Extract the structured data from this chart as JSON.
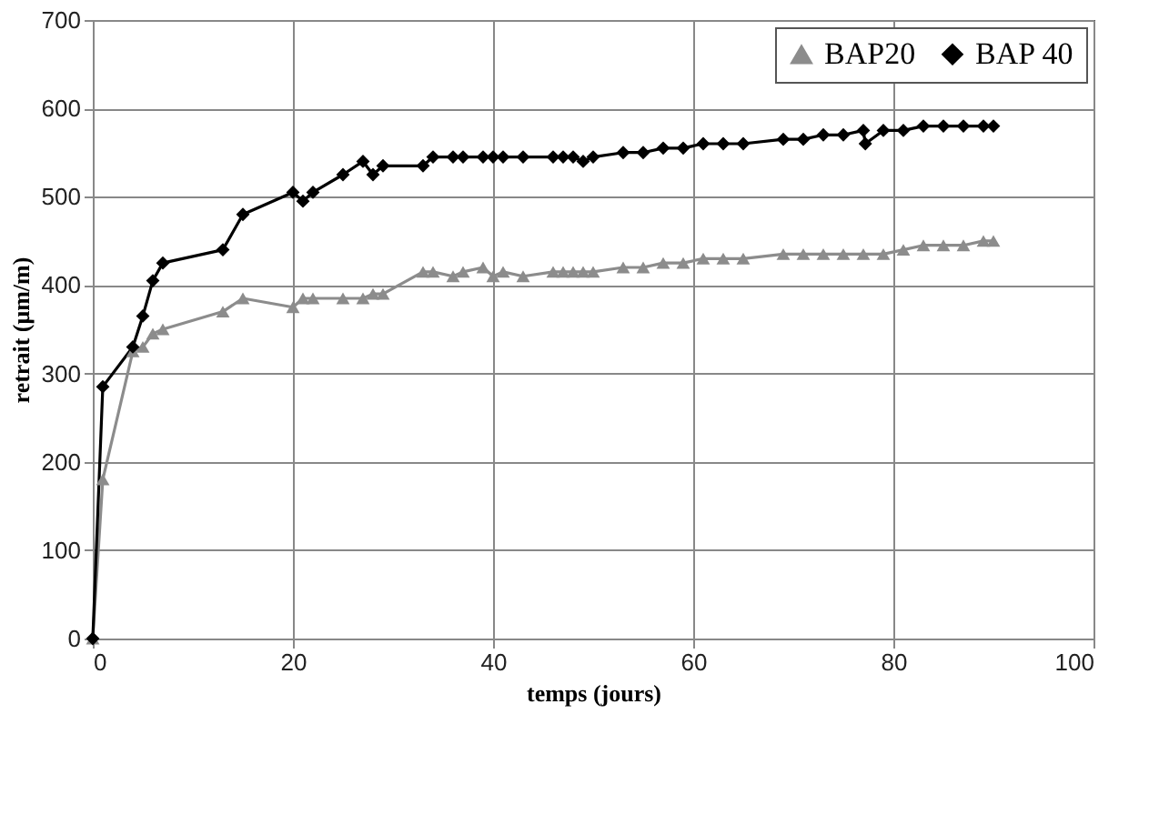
{
  "chart_data": {
    "type": "line",
    "xlabel": "temps (jours)",
    "ylabel": "retrait (μm/m)",
    "xlim": [
      0,
      100
    ],
    "xticks": [
      0,
      20,
      40,
      60,
      80,
      100
    ],
    "ylim": [
      0,
      700
    ],
    "yticks": [
      0,
      100,
      200,
      300,
      400,
      500,
      600,
      700
    ],
    "grid": true,
    "legend": "top right",
    "line_style": "solid",
    "series": [
      {
        "name": "BAP20",
        "color": "#8c8c8c",
        "marker": "triangle",
        "x": [
          0,
          1,
          4,
          5,
          6,
          7,
          13,
          15,
          20,
          21,
          22,
          25,
          27,
          28,
          29,
          33,
          34,
          36,
          37,
          39,
          40,
          41,
          43,
          46,
          47,
          48,
          49,
          50,
          53,
          55,
          57,
          59,
          61,
          63,
          65,
          69,
          71,
          73,
          75,
          77,
          79,
          81,
          83,
          85,
          87,
          89,
          90
        ],
        "values": [
          0,
          180,
          325,
          330,
          345,
          350,
          370,
          385,
          375,
          385,
          385,
          385,
          385,
          390,
          390,
          415,
          415,
          410,
          415,
          420,
          410,
          415,
          410,
          415,
          415,
          415,
          415,
          415,
          420,
          420,
          425,
          425,
          430,
          430,
          430,
          435,
          435,
          435,
          435,
          435,
          435,
          440,
          445,
          445,
          445,
          450,
          450
        ]
      },
      {
        "name": "BAP 40",
        "color": "#000000",
        "marker": "diamond",
        "x": [
          0,
          1,
          4,
          5,
          6,
          7,
          13,
          15,
          20,
          21,
          22,
          25,
          27,
          28,
          29,
          33,
          34,
          36,
          37,
          39,
          40,
          41,
          43,
          46,
          47,
          48,
          49,
          50,
          53,
          55,
          57,
          59,
          61,
          63,
          65,
          69,
          71,
          73,
          75,
          77,
          77.2,
          79,
          81,
          83,
          85,
          87,
          89,
          90
        ],
        "values": [
          0,
          285,
          330,
          365,
          405,
          425,
          440,
          480,
          505,
          495,
          505,
          525,
          540,
          525,
          535,
          535,
          545,
          545,
          545,
          545,
          545,
          545,
          545,
          545,
          545,
          545,
          540,
          545,
          550,
          550,
          555,
          555,
          560,
          560,
          560,
          565,
          565,
          570,
          570,
          575,
          560,
          575,
          575,
          580,
          580,
          580,
          580,
          580
        ]
      }
    ]
  }
}
